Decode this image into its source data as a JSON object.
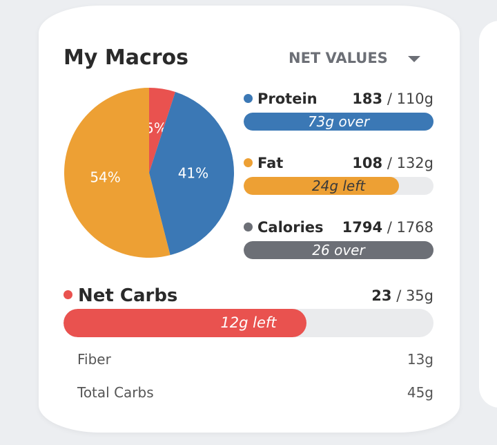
{
  "title": "My Macros",
  "dropdown": "NET VALUES",
  "chart_data": {
    "type": "pie",
    "values": [
      5,
      41,
      54
    ],
    "value_labels": [
      "5%",
      "41%",
      "54%"
    ],
    "colors": [
      "#e9524f",
      "#3b78b5",
      "#eda034"
    ]
  },
  "macros": [
    {
      "name": "Protein",
      "color": "#3b78b5",
      "current": 183,
      "goal": {
        "value": 110,
        "label": "/ 110g"
      },
      "status": "73g over",
      "status_color": "#ffffff"
    },
    {
      "name": "Fat",
      "color": "#eda034",
      "current": 108,
      "goal": {
        "value": 132,
        "label": "/ 132g"
      },
      "status": "24g left",
      "status_color": "#3a3a3a"
    },
    {
      "name": "Calories",
      "color": "#6c6f76",
      "current": 1794,
      "goal": {
        "value": 1768,
        "label": "/ 1768"
      },
      "status": "26 over",
      "status_color": "#ffffff"
    }
  ],
  "net_carbs": {
    "name": "Net Carbs",
    "color": "#e9524f",
    "current": 23,
    "goal": {
      "value": 35,
      "label": "/ 35g"
    },
    "status": "12g left",
    "status_color": "#ffffff"
  },
  "details": [
    {
      "label": "Fiber",
      "value": "13g"
    },
    {
      "label": "Total Carbs",
      "value": "45g"
    }
  ]
}
